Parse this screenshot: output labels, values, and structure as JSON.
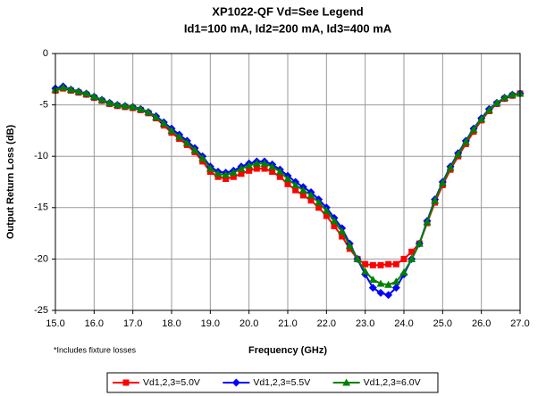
{
  "chart_data": {
    "type": "line",
    "title": [
      "XP1022-QF Vd=See Legend",
      "Id1=100 mA, Id2=200 mA, Id3=400 mA"
    ],
    "xlabel": "Frequency (GHz)",
    "ylabel": "Output Return Loss (dB)",
    "annotation": "*Includes fixture losses",
    "x": [
      15.0,
      15.2,
      15.4,
      15.6,
      15.8,
      16.0,
      16.2,
      16.4,
      16.6,
      16.8,
      17.0,
      17.2,
      17.4,
      17.6,
      17.8,
      18.0,
      18.2,
      18.4,
      18.6,
      18.8,
      19.0,
      19.2,
      19.4,
      19.6,
      19.8,
      20.0,
      20.2,
      20.4,
      20.6,
      20.8,
      21.0,
      21.2,
      21.4,
      21.6,
      21.8,
      22.0,
      22.2,
      22.4,
      22.6,
      22.8,
      23.0,
      23.2,
      23.4,
      23.6,
      23.8,
      24.0,
      24.2,
      24.4,
      24.6,
      24.8,
      25.0,
      25.2,
      25.4,
      25.6,
      25.8,
      26.0,
      26.2,
      26.4,
      26.6,
      26.8,
      27.0
    ],
    "series": [
      {
        "name": "Vd1,2,3=5.0V",
        "color": "#ff0000",
        "marker": "square",
        "values": [
          -3.6,
          -3.4,
          -3.6,
          -3.8,
          -4.0,
          -4.3,
          -4.6,
          -4.9,
          -5.1,
          -5.2,
          -5.3,
          -5.5,
          -5.8,
          -6.3,
          -7.0,
          -7.7,
          -8.3,
          -8.9,
          -9.6,
          -10.5,
          -11.5,
          -12.0,
          -12.2,
          -12.0,
          -11.7,
          -11.4,
          -11.2,
          -11.2,
          -11.5,
          -12.0,
          -12.7,
          -13.3,
          -13.8,
          -14.3,
          -15.0,
          -15.8,
          -16.8,
          -17.8,
          -19.0,
          -20.0,
          -20.5,
          -20.6,
          -20.6,
          -20.5,
          -20.5,
          -20.0,
          -19.3,
          -18.5,
          -16.5,
          -14.5,
          -12.8,
          -11.3,
          -10.0,
          -8.8,
          -7.6,
          -6.5,
          -5.6,
          -4.9,
          -4.4,
          -4.1,
          -3.9
        ]
      },
      {
        "name": "Vd1,2,3=5.5V",
        "color": "#0000ff",
        "marker": "diamond",
        "values": [
          -3.4,
          -3.2,
          -3.5,
          -3.7,
          -3.9,
          -4.2,
          -4.5,
          -4.8,
          -5.0,
          -5.1,
          -5.2,
          -5.4,
          -5.7,
          -6.1,
          -6.7,
          -7.3,
          -7.9,
          -8.5,
          -9.2,
          -10.0,
          -11.0,
          -11.5,
          -11.6,
          -11.4,
          -11.0,
          -10.7,
          -10.5,
          -10.5,
          -10.8,
          -11.3,
          -11.9,
          -12.5,
          -13.0,
          -13.5,
          -14.2,
          -15.0,
          -16.0,
          -17.0,
          -18.5,
          -20.0,
          -21.5,
          -22.8,
          -23.3,
          -23.5,
          -22.8,
          -21.5,
          -20.0,
          -18.5,
          -16.3,
          -14.2,
          -12.5,
          -11.0,
          -9.7,
          -8.5,
          -7.3,
          -6.3,
          -5.4,
          -4.8,
          -4.3,
          -4.0,
          -3.9
        ]
      },
      {
        "name": "Vd1,2,3=6.0V",
        "color": "#008000",
        "marker": "triangle",
        "values": [
          -3.5,
          -3.3,
          -3.5,
          -3.7,
          -3.9,
          -4.2,
          -4.5,
          -4.8,
          -5.0,
          -5.1,
          -5.2,
          -5.4,
          -5.7,
          -6.2,
          -6.8,
          -7.5,
          -8.1,
          -8.7,
          -9.4,
          -10.2,
          -11.2,
          -11.7,
          -11.8,
          -11.6,
          -11.2,
          -10.9,
          -10.7,
          -10.7,
          -11.0,
          -11.5,
          -12.2,
          -12.8,
          -13.3,
          -13.8,
          -14.5,
          -15.3,
          -16.3,
          -17.3,
          -18.7,
          -20.0,
          -21.2,
          -22.0,
          -22.4,
          -22.5,
          -22.2,
          -21.3,
          -20.0,
          -18.5,
          -16.4,
          -14.3,
          -12.6,
          -11.1,
          -9.8,
          -8.6,
          -7.4,
          -6.4,
          -5.5,
          -4.8,
          -4.3,
          -4.0,
          -3.9
        ]
      }
    ],
    "xlim": [
      15,
      27
    ],
    "xticks": [
      {
        "value": 15,
        "label": "15.0"
      },
      {
        "value": 16,
        "label": "16.0"
      },
      {
        "value": 17,
        "label": "17.0"
      },
      {
        "value": 18,
        "label": "18.0"
      },
      {
        "value": 19,
        "label": "19.0"
      },
      {
        "value": 20,
        "label": "20.0"
      },
      {
        "value": 21,
        "label": "21.0"
      },
      {
        "value": 22,
        "label": "22.0"
      },
      {
        "value": 23,
        "label": "23.0"
      },
      {
        "value": 24,
        "label": "24.0"
      },
      {
        "value": 25,
        "label": "25.0"
      },
      {
        "value": 26,
        "label": "26.0"
      },
      {
        "value": 27,
        "label": "27.0"
      }
    ],
    "ylim": [
      -25,
      0
    ],
    "yticks": [
      0,
      -5,
      -10,
      -15,
      -20,
      -25
    ],
    "grid": true,
    "legend": "bottom"
  }
}
